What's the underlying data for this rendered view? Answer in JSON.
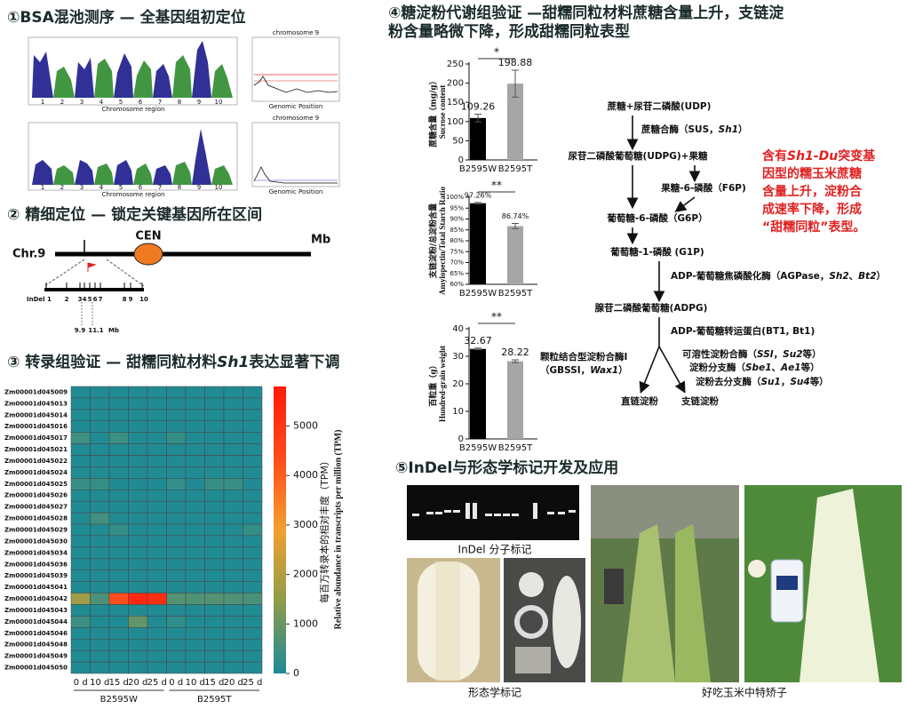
{
  "panels": {
    "bsa": {
      "title": "①BSA混池测序 — 全基因组初定位",
      "chromosomes": [
        "1",
        "2",
        "3",
        "4",
        "5",
        "6",
        "7",
        "8",
        "9",
        "10"
      ],
      "x_label": "Chromosome region",
      "zoom_title": "chromosome 9",
      "zoom_x_label": "Genomic Position"
    },
    "fine_mapping": {
      "title": "② 精细定位 — 锁定关键基因所在区间",
      "chr": "Chr.9",
      "cen": "CEN",
      "unit": "Mb",
      "markers": [
        "InDel 1",
        "2",
        "3",
        "4",
        "5",
        "6",
        "7",
        "8",
        "9",
        "10"
      ],
      "interval": [
        "9.9",
        "11.1"
      ],
      "interval_unit": "Mb"
    },
    "expression": {
      "title": [
        "③ 转录组验证 — 甜糯同粒材料",
        "Sh1",
        "表达显著下调"
      ]
    },
    "metabolism": {
      "title": [
        "④糖淀粉代谢组验证 —甜糯同粒材料蔗糖含量上升，支链淀",
        "粉含量略微下降，形成甜糯同粒表型"
      ]
    },
    "pathway": {
      "sucrose_udp": [
        "蔗糖+尿苷二磷酸(UDP)"
      ],
      "sus": [
        "蔗糖合酶（SUS，",
        "Sh1",
        "）"
      ],
      "udpg": [
        "尿苷二磷酸葡萄糖(UDPG)+果糖"
      ],
      "f6p": [
        "果糖-6-磷酸（F6P)"
      ],
      "g6p": [
        "葡萄糖-6-磷酸（G6P）"
      ],
      "g1p": [
        "葡萄糖-1-磷酸 (G1P)"
      ],
      "agpase": [
        "ADP-葡萄糖焦磷酸化酶（AGPase，",
        "Sh2",
        "、",
        "Bt2",
        "）"
      ],
      "adpg": [
        "腺苷二磷酸葡萄糖(ADPG)"
      ],
      "bt1": [
        "ADP-葡萄糖转运蛋白(BT1, Bt1)"
      ],
      "gbssi": [
        [
          "颗粒结合型淀粉合酶Ⅰ"
        ],
        [
          "（GBSSI，",
          "Wax1",
          "）"
        ]
      ],
      "ss": [
        "可溶性淀粉合酶（",
        "SSI",
        "，",
        "Su2",
        "等）"
      ],
      "sbe": [
        "淀粉分支酶（",
        "Sbe1",
        "、",
        "Ae1",
        "等）"
      ],
      "dbe": [
        "淀粉去分支酶（",
        "Su1",
        "，",
        "Su4",
        "等）"
      ],
      "amylose": [
        "直链淀粉"
      ],
      "amylopectin": [
        "支链淀粉"
      ]
    },
    "note": [
      [
        "含有",
        "Sh1-Du",
        "突变基"
      ],
      [
        "因型的糯玉米蔗糖"
      ],
      [
        "含量上升，淀粉合"
      ],
      [
        "成速率下降，形成"
      ],
      [
        "“甜糯同粒”表型。"
      ]
    ],
    "markers": {
      "title": "⑤InDel与形态学标记开发及应用",
      "captions": [
        "InDel 分子标记",
        "形态学标记",
        "好吃玉米中特矫子"
      ]
    }
  },
  "chart_data": [
    {
      "type": "heatmap",
      "rows": [
        "Zm00001d045009",
        "Zm00001d045013",
        "Zm00001d045014",
        "Zm00001d045016",
        "Zm00001d045017",
        "Zm00001d045021",
        "Zm00001d045022",
        "Zm00001d045024",
        "Zm00001d045025",
        "Zm00001d045026",
        "Zm00001d045027",
        "Zm00001d045028",
        "Zm00001d045029",
        "Zm00001d045030",
        "Zm00001d045034",
        "Zm00001d045036",
        "Zm00001d045039",
        "Zm00001d045041",
        "Zm00001d045042",
        "Zm00001d045043",
        "Zm00001d045044",
        "Zm00001d045046",
        "Zm00001d045048",
        "Zm00001d045049",
        "Zm00001d045050"
      ],
      "categories": [
        "0 d",
        "10 d",
        "15 d",
        "20 d",
        "25 d",
        "0 d",
        "10 d",
        "15 d",
        "20 d",
        "25 d"
      ],
      "groups": [
        "B2595W",
        "B2595T"
      ],
      "values": [
        [
          80,
          80,
          80,
          80,
          80,
          80,
          80,
          80,
          80,
          80
        ],
        [
          80,
          80,
          80,
          80,
          80,
          80,
          80,
          80,
          80,
          80
        ],
        [
          80,
          80,
          80,
          80,
          80,
          80,
          80,
          80,
          80,
          80
        ],
        [
          80,
          80,
          80,
          80,
          80,
          80,
          80,
          80,
          80,
          80
        ],
        [
          450,
          80,
          400,
          80,
          80,
          300,
          80,
          80,
          80,
          80
        ],
        [
          80,
          80,
          80,
          80,
          80,
          80,
          80,
          80,
          80,
          80
        ],
        [
          80,
          80,
          80,
          80,
          80,
          80,
          80,
          80,
          80,
          80
        ],
        [
          80,
          80,
          80,
          80,
          80,
          80,
          80,
          80,
          80,
          80
        ],
        [
          350,
          350,
          80,
          80,
          80,
          300,
          80,
          350,
          350,
          80
        ],
        [
          80,
          80,
          80,
          80,
          80,
          80,
          80,
          80,
          80,
          80
        ],
        [
          80,
          80,
          80,
          80,
          80,
          80,
          80,
          80,
          80,
          80
        ],
        [
          80,
          500,
          80,
          80,
          80,
          80,
          80,
          80,
          80,
          80
        ],
        [
          80,
          80,
          300,
          80,
          80,
          80,
          80,
          80,
          80,
          300
        ],
        [
          80,
          80,
          80,
          80,
          80,
          80,
          80,
          80,
          80,
          80
        ],
        [
          80,
          80,
          80,
          80,
          80,
          80,
          80,
          80,
          80,
          80
        ],
        [
          80,
          80,
          80,
          80,
          80,
          80,
          80,
          80,
          80,
          80
        ],
        [
          80,
          80,
          80,
          80,
          80,
          80,
          80,
          80,
          80,
          80
        ],
        [
          80,
          80,
          80,
          80,
          80,
          80,
          80,
          80,
          80,
          80
        ],
        [
          1700,
          600,
          4300,
          5400,
          5200,
          700,
          650,
          700,
          650,
          600
        ],
        [
          80,
          80,
          80,
          80,
          80,
          80,
          80,
          80,
          80,
          80
        ],
        [
          400,
          80,
          80,
          900,
          80,
          250,
          80,
          80,
          80,
          80
        ],
        [
          80,
          80,
          80,
          80,
          80,
          80,
          80,
          80,
          80,
          80
        ],
        [
          80,
          80,
          80,
          80,
          80,
          80,
          80,
          80,
          80,
          80
        ],
        [
          80,
          80,
          80,
          80,
          80,
          80,
          80,
          80,
          80,
          80
        ],
        [
          80,
          80,
          80,
          80,
          80,
          80,
          80,
          80,
          80,
          80
        ]
      ],
      "zlim": [
        0,
        5800
      ],
      "colorbar_ticks": [
        0,
        1000,
        2000,
        3000,
        4000,
        5000
      ],
      "colorscale": [
        "#1b8a98",
        "#8e9c4c",
        "#f2a02e",
        "#ff4a1c",
        "#ff1a0a"
      ],
      "colorbar_label": [
        "每百万转录本的相对丰度（TPM）",
        "Relative abundance in transcripts per million (TPM)"
      ]
    },
    {
      "type": "bar",
      "ylabel": [
        "蔗糖含量（mg/g）",
        "Sucrose content"
      ],
      "categories": [
        "B2595W",
        "B2595T"
      ],
      "values": [
        109.26,
        198.88
      ],
      "errors": [
        10,
        35
      ],
      "colors": [
        "#000000",
        "#a6a6a8"
      ],
      "ylim": [
        0,
        250
      ],
      "yticks": [
        0,
        50,
        100,
        150,
        200,
        250
      ],
      "significance": "*"
    },
    {
      "type": "bar",
      "ylabel": [
        "支链淀粉/总淀粉含量",
        "Amylopectin/Total Starch Ratio"
      ],
      "categories": [
        "B2595W",
        "B2595T"
      ],
      "values": [
        97.26,
        86.74
      ],
      "value_labels": [
        "97.26%",
        "86.74%"
      ],
      "errors": [
        0.3,
        1.2
      ],
      "colors": [
        "#000000",
        "#a6a6a8"
      ],
      "ylim": [
        60,
        100
      ],
      "yticks": [
        {
          "value": 60,
          "label": "60%"
        },
        {
          "value": 65,
          "label": "65%"
        },
        {
          "value": 70,
          "label": "70%"
        },
        {
          "value": 75,
          "label": "75%"
        },
        {
          "value": 80,
          "label": "80%"
        },
        {
          "value": 85,
          "label": "85%"
        },
        {
          "value": 90,
          "label": "90%"
        },
        {
          "value": 95,
          "label": "95%"
        },
        {
          "value": 100,
          "label": "100%"
        }
      ],
      "significance": "**"
    },
    {
      "type": "bar",
      "ylabel": [
        "百粒重（g）",
        "Hundred-grain weight"
      ],
      "categories": [
        "B2595W",
        "B2595T"
      ],
      "values": [
        32.67,
        28.22
      ],
      "errors": [
        0.3,
        0.5
      ],
      "colors": [
        "#000000",
        "#a6a6a8"
      ],
      "ylim": [
        0,
        40
      ],
      "yticks": [
        0,
        10,
        20,
        30,
        40
      ],
      "significance": "**"
    }
  ]
}
